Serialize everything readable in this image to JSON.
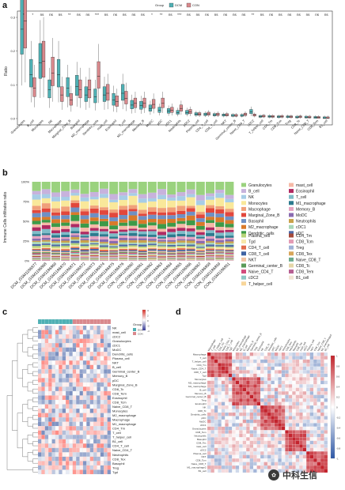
{
  "panels": {
    "a": "a",
    "b": "b",
    "c": "c",
    "d": "d"
  },
  "colors": {
    "dcm": "#4fb0b4",
    "con": "#d9888c"
  },
  "panel_a": {
    "ylabel": "Ratio",
    "legend_title": "Group",
    "legend_items": [
      "DCM",
      "CON"
    ],
    "yticks": [
      "0.3",
      "0.2",
      "0.1",
      "0.0"
    ],
    "cells": [
      "Granulocytes",
      "B_cell",
      "Monocytes",
      "NK",
      "Macrophage",
      "Marginal_Zone_B",
      "Basophil",
      "M2_macrophage",
      "Dendritic_cells",
      "mast_cell",
      "Eosinophil",
      "T_cell",
      "M1_macrophage",
      "Memory_B",
      "MoDC",
      "pDC",
      "cDC1",
      "Neutrophils",
      "pDC2",
      "Plasma_cell",
      "CD4_T_cell",
      "CD8_T_cell",
      "NKT",
      "Germinal_center_B",
      "Naive_CD4_T",
      "cDC2",
      "T_helper_cell",
      "CD4_Tm",
      "CD8_Tcm",
      "Treg",
      "CD8_Tc",
      "Naive_CD8_T",
      "CD8_Tem",
      "B1_cell"
    ],
    "sig": [
      "*",
      "*",
      "ns",
      "ns",
      "ns",
      "**",
      "ns",
      "ns",
      "***",
      "ns",
      "ns",
      "ns",
      "ns",
      "ns",
      "*",
      "**",
      "ns",
      "***",
      "ns",
      "ns",
      "ns",
      "ns",
      "ns",
      "ns",
      "ns",
      "**",
      "ns",
      "ns",
      "ns",
      "ns",
      "ns",
      "ns",
      "ns",
      "ns"
    ],
    "dcm_median": [
      0.265,
      0.13,
      0.165,
      0.085,
      0.13,
      0.09,
      0.095,
      0.07,
      0.065,
      0.07,
      0.055,
      0.075,
      0.04,
      0.038,
      0.03,
      0.025,
      0.022,
      0.018,
      0.018,
      0.013,
      0.012,
      0.011,
      0.01,
      0.009,
      0.009,
      0.02,
      0.006,
      0.006,
      0.005,
      0.005,
      0.004,
      0.004,
      0.003,
      0.002
    ],
    "con_median": [
      0.29,
      0.09,
      0.17,
      0.135,
      0.07,
      0.055,
      0.085,
      0.085,
      0.125,
      0.075,
      0.05,
      0.06,
      0.045,
      0.045,
      0.042,
      0.045,
      0.025,
      0.03,
      0.02,
      0.013,
      0.014,
      0.012,
      0.011,
      0.009,
      0.012,
      0.01,
      0.007,
      0.006,
      0.006,
      0.005,
      0.005,
      0.004,
      0.003,
      0.002
    ]
  },
  "panel_b": {
    "ylabel": "Immune Cells infiltration ratio",
    "yticks": [
      "100%",
      "75%",
      "50%",
      "25%",
      "0%"
    ],
    "samples": [
      "DCM_GSM1186877",
      "DCM_GSM1186868",
      "DCM_GSM1186869",
      "DCM_GSM1186870",
      "DCM_GSM1186871",
      "DCM_GSM1186872",
      "DCM_GSM1186873",
      "DCM_GSM1186874",
      "DCM_GSM1186875",
      "DCM_GSM1186876",
      "CON_GSM1186860",
      "CON_GSM1186861",
      "CON_GSM1186862",
      "CON_GSM1186863",
      "CON_GSM1186864",
      "CON_GSM1186865",
      "CON_GSM1186866",
      "CON_GSM1186867",
      "CON_GSM1186858",
      "CON_GSM1186859",
      "CON_GSM1186851"
    ],
    "legend_top": [
      {
        "name": "Granulocytes",
        "color": "#9ad27e"
      },
      {
        "name": "B_cell",
        "color": "#c7b2dc"
      },
      {
        "name": "NK",
        "color": "#a7cde6"
      },
      {
        "name": "Monocytes",
        "color": "#f9e89a"
      },
      {
        "name": "Macrophage",
        "color": "#f0a07a"
      },
      {
        "name": "Marginal_Zone_B",
        "color": "#e2473c"
      },
      {
        "name": "Basophil",
        "color": "#6f90c4"
      },
      {
        "name": "M2_macrophage",
        "color": "#d97a2a"
      },
      {
        "name": "Dendritic_cells",
        "color": "#3d9a48"
      },
      {
        "name": "mast_cell",
        "color": "#f6b9a6"
      },
      {
        "name": "Eosinophil",
        "color": "#b02a62"
      },
      {
        "name": "T_cell",
        "color": "#7fbcc8"
      },
      {
        "name": "M1_macrophage",
        "color": "#2c7a8e"
      },
      {
        "name": "Memory_B",
        "color": "#e5a3c0"
      },
      {
        "name": "MoDC",
        "color": "#8a6bb0"
      },
      {
        "name": "Neutrophils",
        "color": "#c9a24a"
      },
      {
        "name": "cDC1",
        "color": "#a9d7b8"
      },
      {
        "name": "pDC",
        "color": "#4f6aa8"
      }
    ],
    "legend_bottom": [
      {
        "name": "Plasma_cell",
        "color": "#b7d57a"
      },
      {
        "name": "Tgd",
        "color": "#f7e6a8"
      },
      {
        "name": "CD4_T_cell",
        "color": "#e16a4b"
      },
      {
        "name": "CD8_T_cell",
        "color": "#3e63a3"
      },
      {
        "name": "NKT",
        "color": "#f1c3a3"
      },
      {
        "name": "Germinal_center_B",
        "color": "#5a9a58"
      },
      {
        "name": "Naive_CD4_T",
        "color": "#d24b7c"
      },
      {
        "name": "cDC2",
        "color": "#8ec6c4"
      },
      {
        "name": "T_helper_cell",
        "color": "#f8d69a"
      },
      {
        "name": "CD4_Tm",
        "color": "#a54a3a"
      },
      {
        "name": "CD8_Tcm",
        "color": "#e39bb5"
      },
      {
        "name": "Treg",
        "color": "#9fb1d6"
      },
      {
        "name": "CD8_Tex",
        "color": "#d8a65a"
      },
      {
        "name": "Naive_CD8_T",
        "color": "#6cab8e"
      },
      {
        "name": "CD8_Tc",
        "color": "#e4d6a7"
      },
      {
        "name": "CD8_Tem",
        "color": "#b65f92"
      },
      {
        "name": "B1_cell",
        "color": "#f1e3d2"
      }
    ]
  },
  "panel_c": {
    "legend_title": "Group",
    "legend_items": [
      "DCM",
      "CON"
    ],
    "scale_ticks": [
      "4",
      "2",
      "0",
      "-2",
      "-4"
    ],
    "rows": [
      "NK",
      "mast_cell",
      "cDC2",
      "Granulocytes",
      "cDC1",
      "MoDC",
      "Dendritic_cells",
      "Plasma_cell",
      "NKT",
      "B_cell",
      "Germinal_center_B",
      "Memory_B",
      "pDC",
      "Marginal_Zone_B",
      "CD8_Tc",
      "CD8_Tem",
      "Eosinophil",
      "CD8_Tcm",
      "Naive_CD8_T",
      "Monocytes",
      "M2_macrophage",
      "Macrophage",
      "M1_macrophage",
      "CD4_Tm",
      "T_cell",
      "T_helper_cell",
      "B1_cell",
      "CD4_T_cell",
      "Naive_CD4_T",
      "Neutrophils",
      "CD8_Tex",
      "Basophil",
      "Treg",
      "Tgd"
    ],
    "n_dcm": 10,
    "n_con": 11
  },
  "panel_d": {
    "labels": [
      "Macrophage",
      "T_cell",
      "T_helper_cell",
      "CD4_Tm",
      "Naive_CD4_T",
      "CD8_T_cell",
      "Tgd",
      "Monocytes",
      "M2_macrophage",
      "M1_macrophage",
      "B_cell",
      "Memory_B",
      "Germinal_center_B",
      "Treg",
      "Eosinophil",
      "NK",
      "CD8_Tc",
      "Dendritic_cells",
      "pDC",
      "MoDC",
      "cDC1",
      "Granulocytes",
      "CD8_Tem",
      "Neutrophils",
      "Basophil",
      "CD8_Tex",
      "mast_cell",
      "cDC2",
      "Plasma_cell",
      "NKT",
      "CD8_Tcm",
      "Naive_CD8_T",
      "M1_macrophage2",
      "B1_cell"
    ],
    "scale_ticks": [
      "1",
      "0.8",
      "0.6",
      "0.4",
      "0.2",
      "0",
      "-0.2",
      "-0.4",
      "-0.6",
      "-0.8",
      "-1"
    ],
    "watermark": "中科生信"
  }
}
